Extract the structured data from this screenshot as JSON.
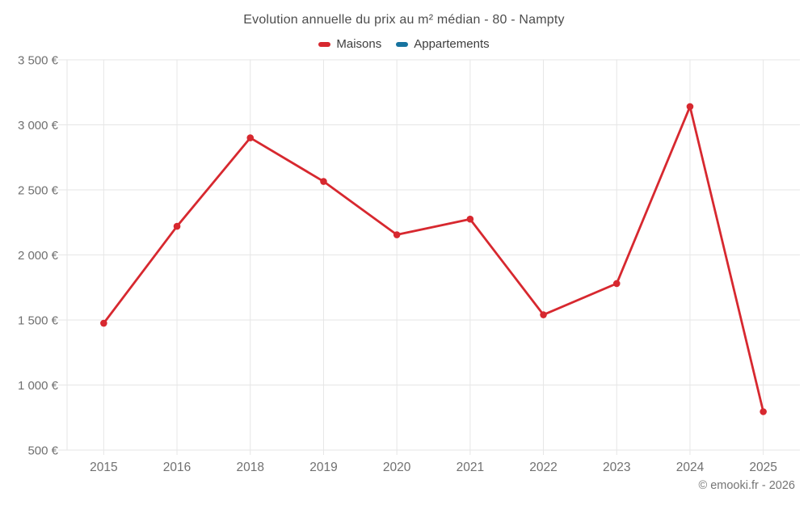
{
  "chart_data": {
    "type": "line",
    "title": "Evolution annuelle du prix au m² médian - 80 - Nampty",
    "categories": [
      "2015",
      "2016",
      "2018",
      "2019",
      "2020",
      "2021",
      "2022",
      "2023",
      "2024",
      "2025"
    ],
    "series": [
      {
        "name": "Maisons",
        "color": "#d7282f",
        "values": [
          1475,
          2220,
          2900,
          2565,
          2155,
          2275,
          1540,
          1780,
          3140,
          795
        ]
      },
      {
        "name": "Appartements",
        "color": "#17739f",
        "values": []
      }
    ],
    "xlabel": "",
    "ylabel": "",
    "ylim": [
      500,
      3500
    ],
    "ytick_step": 500,
    "ytick_labels": [
      "3 500 €",
      "3 000 €",
      "2 500 €",
      "2 000 €",
      "1 500 €",
      "1 000 €",
      "500 €"
    ],
    "grid": true,
    "legend_position": "top",
    "axis_color": "#707070",
    "grid_color": "#e6e6e6",
    "footer": "© emooki.fr - 2026"
  }
}
